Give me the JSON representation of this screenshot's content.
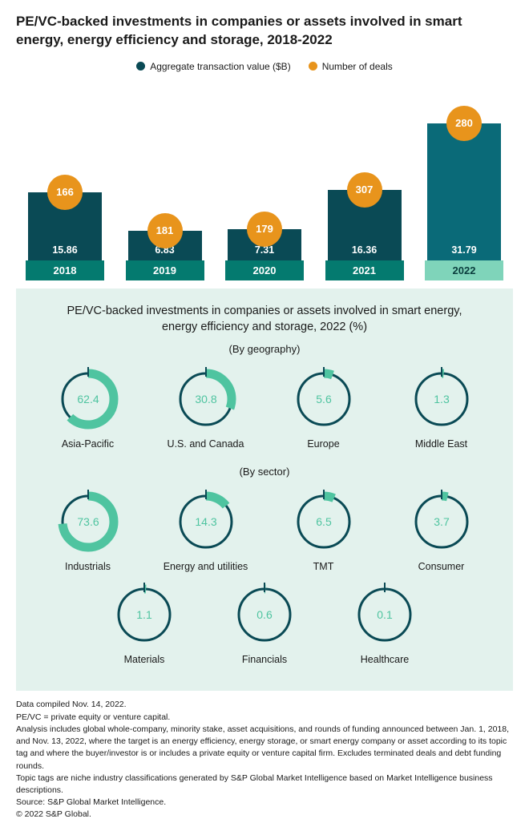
{
  "colors": {
    "bar": "#0a4a55",
    "barHighlight": "#0a6a78",
    "yearBand": "#047a6f",
    "yearBandHighlight": "#7fd4ba",
    "circle": "#e8941c",
    "circleText": "#ffffff",
    "panelBg": "#e3f2ed",
    "donutTrack": "#0a4a55",
    "donutArc": "#4fc4a0",
    "donutTick": "#0a4a55",
    "donutValText": "#4fc4a0",
    "text": "#1a1a1a"
  },
  "title": "PE/VC-backed investments in companies or assets involved in smart energy, energy efficiency and storage, 2018-2022",
  "legend": {
    "value": "Aggregate transaction value ($B)",
    "deals": "Number of deals"
  },
  "barChart": {
    "maxValue": 32,
    "barFullHeight": 172,
    "years": [
      {
        "year": "2018",
        "value": 15.86,
        "deals": 166,
        "highlight": false
      },
      {
        "year": "2019",
        "value": 6.83,
        "deals": 181,
        "highlight": false
      },
      {
        "year": "2020",
        "value": 7.31,
        "deals": 179,
        "highlight": false
      },
      {
        "year": "2021",
        "value": 16.36,
        "deals": 307,
        "highlight": false
      },
      {
        "year": "2022",
        "value": 31.79,
        "deals": 280,
        "highlight": true
      }
    ]
  },
  "donutsTitle": "PE/VC-backed investments in companies or assets involved in smart energy, energy efficiency and storage, 2022 (%)",
  "geography": {
    "subtitle": "(By geography)",
    "items": [
      {
        "label": "Asia-Pacific",
        "value": 62.4
      },
      {
        "label": "U.S. and Canada",
        "value": 30.8
      },
      {
        "label": "Europe",
        "value": 5.6
      },
      {
        "label": "Middle East",
        "value": 1.3
      }
    ]
  },
  "sector": {
    "subtitle": "(By sector)",
    "items": [
      {
        "label": "Industrials",
        "value": 73.6
      },
      {
        "label": "Energy and utilities",
        "value": 14.3
      },
      {
        "label": "TMT",
        "value": 6.5
      },
      {
        "label": "Consumer",
        "value": 3.7
      },
      {
        "label": "Materials",
        "value": 1.1
      },
      {
        "label": "Financials",
        "value": 0.6
      },
      {
        "label": "Healthcare",
        "value": 0.1
      }
    ]
  },
  "footer": [
    "Data compiled Nov. 14, 2022.",
    "PE/VC = private equity or venture capital.",
    "Analysis includes global whole-company, minority stake, asset acquisitions, and rounds of funding announced between Jan. 1, 2018, and Nov. 13, 2022, where the target is an energy efficiency, energy storage, or smart energy company or asset according to its topic tag and where the buyer/investor is or includes a private equity or venture capital firm. Excludes terminated deals and debt funding rounds.",
    "Topic tags are niche industry classifications generated by S&P Global Market Intelligence based on Market Intelligence business descriptions.",
    "Source: S&P Global Market Intelligence.",
    "© 2022 S&P Global."
  ]
}
